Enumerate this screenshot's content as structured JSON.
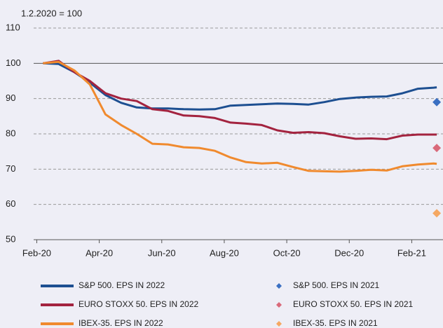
{
  "chart_data": {
    "type": "line",
    "y_axis_label": "1.2.2020 = 100",
    "xlim": [
      -0.1,
      13.0
    ],
    "xticks": [
      {
        "value": 0,
        "label": "Feb-20"
      },
      {
        "value": 2,
        "label": "Apr-20"
      },
      {
        "value": 4,
        "label": "Jun-20"
      },
      {
        "value": 6,
        "label": "Aug-20"
      },
      {
        "value": 8,
        "label": "Oct-20"
      },
      {
        "value": 10,
        "label": "Dec-20"
      },
      {
        "value": 12,
        "label": "Feb-21"
      }
    ],
    "ylim": [
      50,
      110
    ],
    "yticks": [
      50,
      60,
      70,
      80,
      90,
      100,
      110
    ],
    "grid": true,
    "reference_line": 100,
    "series": [
      {
        "name": "S&P 500. EPS IN 2022",
        "color": "#1d4f91",
        "marker": "line",
        "x": [
          0.2,
          0.7,
          1.2,
          1.7,
          2.2,
          2.7,
          3.2,
          3.7,
          4.2,
          4.7,
          5.2,
          5.7,
          6.2,
          6.7,
          7.2,
          7.7,
          8.2,
          8.7,
          9.2,
          9.7,
          10.2,
          10.7,
          11.2,
          11.7,
          12.2,
          12.7,
          12.8
        ],
        "values": [
          100,
          99.8,
          97.5,
          94.5,
          91,
          88.8,
          87.5,
          87.2,
          87.2,
          87,
          86.9,
          87,
          88,
          88.2,
          88.4,
          88.6,
          88.5,
          88.3,
          89,
          89.9,
          90.3,
          90.5,
          90.6,
          91.5,
          92.8,
          93.1,
          93.2
        ]
      },
      {
        "name": "EURO STOXX 50. EPS IN 2022",
        "color": "#a3233f",
        "marker": "line",
        "x": [
          0.2,
          0.7,
          1.2,
          1.7,
          2.2,
          2.7,
          3.2,
          3.7,
          4.2,
          4.7,
          5.2,
          5.7,
          6.2,
          6.7,
          7.2,
          7.7,
          8.2,
          8.7,
          9.2,
          9.7,
          10.2,
          10.7,
          11.2,
          11.7,
          12.2,
          12.7,
          12.8
        ],
        "values": [
          100,
          100.7,
          97.5,
          95,
          91.5,
          90,
          89.3,
          87,
          86.5,
          85.2,
          85,
          84.5,
          83.2,
          82.9,
          82.5,
          81,
          80.3,
          80.5,
          80.2,
          79.3,
          78.6,
          78.7,
          78.5,
          79.5,
          79.8,
          79.8,
          79.8
        ]
      },
      {
        "name": "IBEX-35. EPS IN 2022",
        "color": "#f08a2e",
        "marker": "line",
        "x": [
          0.2,
          0.7,
          1.2,
          1.7,
          2.2,
          2.7,
          3.2,
          3.7,
          4.2,
          4.7,
          5.2,
          5.7,
          6.2,
          6.7,
          7.2,
          7.7,
          8.2,
          8.7,
          9.2,
          9.7,
          10.2,
          10.7,
          11.2,
          11.7,
          12.2,
          12.7,
          12.8
        ],
        "values": [
          100,
          100.4,
          98,
          94,
          85.5,
          82.5,
          80,
          77.2,
          77,
          76.2,
          76,
          75.2,
          73.3,
          72,
          71.6,
          71.8,
          70.6,
          69.5,
          69.4,
          69.3,
          69.5,
          69.8,
          69.6,
          70.8,
          71.3,
          71.6,
          71.5
        ]
      },
      {
        "name": "S&P 500. EPS IN 2021",
        "color": "#3a6fc2",
        "marker": "diamond",
        "x": [
          12.8
        ],
        "values": [
          89
        ]
      },
      {
        "name": "EURO STOXX 50. EPS IN 2021",
        "color": "#d9697a",
        "marker": "diamond",
        "x": [
          12.8
        ],
        "values": [
          76
        ]
      },
      {
        "name": "IBEX-35. EPS IN 2021",
        "color": "#f5a862",
        "marker": "diamond",
        "x": [
          12.8
        ],
        "values": [
          57.5
        ]
      }
    ]
  }
}
